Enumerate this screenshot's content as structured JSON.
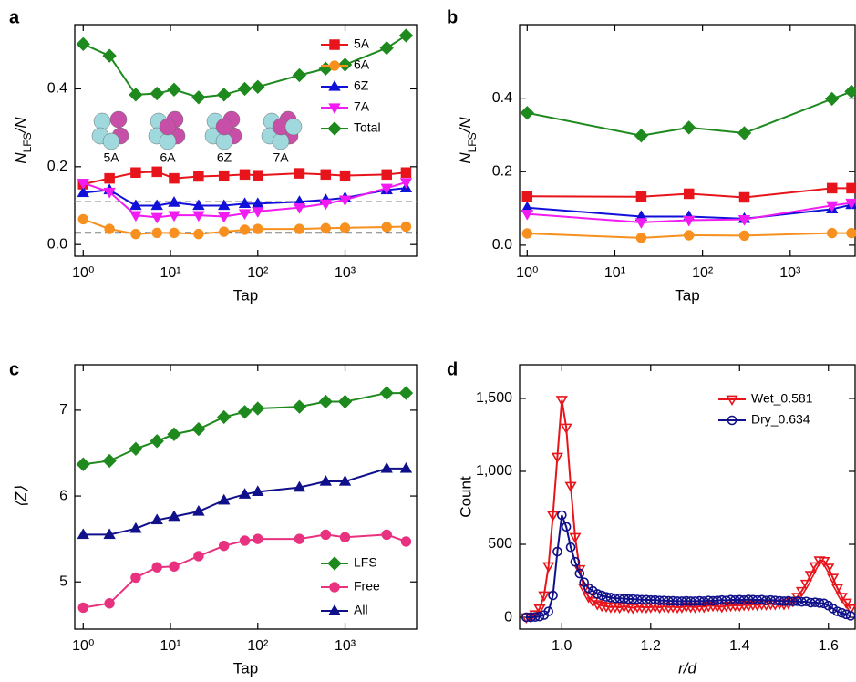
{
  "chart_data": [
    {
      "type": "line",
      "panel_label": "a",
      "x_label": "Tap",
      "y_label": [
        "N",
        "LFS",
        "/N"
      ],
      "xscale": "log",
      "legend": "upper right",
      "grid": false,
      "xlim": [
        0.8,
        6600
      ],
      "ylim": [
        -0.03,
        0.565
      ],
      "xticks": [
        {
          "value": 1,
          "label": "10⁰"
        },
        {
          "value": 10,
          "label": "10¹"
        },
        {
          "value": 100,
          "label": "10²"
        },
        {
          "value": 1000,
          "label": "10³"
        }
      ],
      "yticks": [
        {
          "value": 0,
          "label": "0.0"
        },
        0.2,
        0.4
      ],
      "x": [
        1,
        2,
        4,
        7,
        11,
        21,
        41,
        71,
        100,
        300,
        600,
        1000,
        3000,
        5000
      ],
      "hlines": [
        {
          "value": 0.11,
          "color": "#999999"
        },
        {
          "value": 0.03,
          "color": "#000000"
        }
      ],
      "inset_labels": [
        "5A",
        "6A",
        "6Z",
        "7A"
      ],
      "series": [
        {
          "name": "5A",
          "color": "#e8141b",
          "marker": "square",
          "values": [
            0.155,
            0.17,
            0.185,
            0.187,
            0.17,
            0.175,
            0.177,
            0.18,
            0.178,
            0.183,
            0.18,
            0.177,
            0.18,
            0.185
          ]
        },
        {
          "name": "6A",
          "color": "#f7901e",
          "marker": "circle",
          "values": [
            0.065,
            0.04,
            0.027,
            0.03,
            0.03,
            0.027,
            0.033,
            0.038,
            0.04,
            0.04,
            0.042,
            0.043,
            0.045,
            0.046
          ]
        },
        {
          "name": "6Z",
          "color": "#1010d8",
          "marker": "triangle-up",
          "values": [
            0.133,
            0.14,
            0.1,
            0.1,
            0.108,
            0.1,
            0.1,
            0.105,
            0.105,
            0.11,
            0.115,
            0.12,
            0.14,
            0.145
          ]
        },
        {
          "name": "7A",
          "color": "#f21cf2",
          "marker": "triangle-down",
          "values": [
            0.158,
            0.135,
            0.075,
            0.07,
            0.075,
            0.075,
            0.072,
            0.08,
            0.085,
            0.095,
            0.105,
            0.115,
            0.145,
            0.16
          ]
        },
        {
          "name": "Total",
          "color": "#1e8a1e",
          "marker": "diamond",
          "values": [
            0.515,
            0.485,
            0.385,
            0.388,
            0.398,
            0.378,
            0.385,
            0.4,
            0.405,
            0.435,
            0.452,
            0.462,
            0.505,
            0.537
          ]
        }
      ]
    },
    {
      "type": "line",
      "panel_label": "b",
      "x_label": "Tap",
      "y_label": [
        "N",
        "LFS",
        "/N"
      ],
      "xscale": "log",
      "grid": false,
      "xlim": [
        0.82,
        5500
      ],
      "ylim": [
        -0.03,
        0.6
      ],
      "xticks": [
        {
          "value": 1,
          "label": "10⁰"
        },
        {
          "value": 10,
          "label": "10¹"
        },
        {
          "value": 100,
          "label": "10²"
        },
        {
          "value": 1000,
          "label": "10³"
        }
      ],
      "yticks": [
        {
          "value": 0,
          "label": "0.0"
        },
        0.2,
        0.4
      ],
      "x": [
        1,
        20,
        70,
        300,
        3000,
        5000
      ],
      "series": [
        {
          "color": "#e8141b",
          "marker": "square",
          "values": [
            0.133,
            0.132,
            0.14,
            0.13,
            0.155,
            0.155
          ]
        },
        {
          "color": "#f7901e",
          "marker": "circle",
          "values": [
            0.032,
            0.02,
            0.027,
            0.026,
            0.033,
            0.033
          ]
        },
        {
          "color": "#1010d8",
          "marker": "triangle-up",
          "values": [
            0.102,
            0.078,
            0.078,
            0.072,
            0.098,
            0.11
          ]
        },
        {
          "color": "#f21cf2",
          "marker": "triangle-down",
          "values": [
            0.085,
            0.062,
            0.068,
            0.07,
            0.108,
            0.115
          ]
        },
        {
          "color": "#1e8a1e",
          "marker": "diamond",
          "values": [
            0.36,
            0.298,
            0.32,
            0.305,
            0.398,
            0.418
          ]
        }
      ]
    },
    {
      "type": "line",
      "panel_label": "c",
      "x_label": "Tap",
      "y_label": "⟨Z⟩",
      "xscale": "log",
      "legend": "lower right",
      "grid": false,
      "xlim": [
        0.8,
        6600
      ],
      "ylim": [
        4.45,
        7.53
      ],
      "xticks": [
        {
          "value": 1,
          "label": "10⁰"
        },
        {
          "value": 10,
          "label": "10¹"
        },
        {
          "value": 100,
          "label": "10²"
        },
        {
          "value": 1000,
          "label": "10³"
        }
      ],
      "yticks": [
        5,
        6,
        7
      ],
      "x": [
        1,
        2,
        4,
        7,
        11,
        21,
        41,
        71,
        100,
        300,
        600,
        1000,
        3000,
        5000
      ],
      "series": [
        {
          "name": "LFS",
          "color": "#1e8a1e",
          "marker": "diamond",
          "values": [
            6.37,
            6.41,
            6.55,
            6.64,
            6.72,
            6.78,
            6.92,
            6.98,
            7.02,
            7.04,
            7.1,
            7.1,
            7.2,
            7.2
          ]
        },
        {
          "name": "Free",
          "color": "#e8317f",
          "marker": "circle",
          "values": [
            4.7,
            4.75,
            5.05,
            5.17,
            5.18,
            5.3,
            5.42,
            5.48,
            5.5,
            5.5,
            5.55,
            5.52,
            5.55,
            5.47
          ]
        },
        {
          "name": "All",
          "color": "#10108a",
          "marker": "triangle-up",
          "values": [
            5.55,
            5.55,
            5.62,
            5.72,
            5.76,
            5.82,
            5.95,
            6.02,
            6.05,
            6.1,
            6.17,
            6.17,
            6.32,
            6.32
          ]
        }
      ]
    },
    {
      "type": "line",
      "panel_label": "d",
      "x_label": "r/d",
      "y_label": "Count",
      "legend": "upper right",
      "grid": false,
      "open_markers": true,
      "xlim": [
        0.905,
        1.66
      ],
      "ylim": [
        -81,
        1731
      ],
      "xticks": [
        {
          "value": 1,
          "label": "1.0"
        },
        1.2,
        1.4,
        1.6
      ],
      "yticks": [
        0,
        500,
        {
          "value": 1000,
          "label": "1,000"
        },
        {
          "value": 1500,
          "label": "1,500"
        }
      ],
      "x": [
        0.92,
        0.93,
        0.94,
        0.95,
        0.96,
        0.97,
        0.98,
        0.99,
        1.0,
        1.01,
        1.02,
        1.03,
        1.04,
        1.05,
        1.06,
        1.07,
        1.08,
        1.09,
        1.1,
        1.11,
        1.12,
        1.13,
        1.14,
        1.15,
        1.16,
        1.17,
        1.18,
        1.19,
        1.2,
        1.21,
        1.22,
        1.23,
        1.24,
        1.25,
        1.26,
        1.27,
        1.28,
        1.29,
        1.3,
        1.31,
        1.32,
        1.33,
        1.34,
        1.35,
        1.36,
        1.37,
        1.38,
        1.39,
        1.4,
        1.41,
        1.42,
        1.43,
        1.44,
        1.45,
        1.46,
        1.47,
        1.48,
        1.49,
        1.5,
        1.51,
        1.52,
        1.53,
        1.54,
        1.55,
        1.56,
        1.57,
        1.58,
        1.59,
        1.6,
        1.61,
        1.62,
        1.63,
        1.64,
        1.65
      ],
      "series": [
        {
          "name": "Wet_0.581",
          "color": "#e8141b",
          "marker": "triangle-down",
          "values": [
            0,
            5,
            20,
            60,
            150,
            350,
            700,
            1100,
            1490,
            1300,
            900,
            550,
            330,
            200,
            140,
            110,
            90,
            80,
            75,
            70,
            72,
            68,
            75,
            70,
            65,
            72,
            70,
            68,
            70,
            72,
            68,
            75,
            70,
            72,
            68,
            70,
            75,
            72,
            70,
            75,
            72,
            78,
            80,
            75,
            72,
            78,
            80,
            82,
            80,
            85,
            82,
            88,
            85,
            90,
            88,
            92,
            90,
            95,
            90,
            95,
            110,
            140,
            180,
            230,
            290,
            350,
            390,
            385,
            340,
            270,
            200,
            140,
            100,
            60
          ]
        },
        {
          "name": "Dry_0.634",
          "color": "#10108a",
          "marker": "circle",
          "values": [
            0,
            0,
            2,
            5,
            15,
            40,
            150,
            450,
            700,
            620,
            480,
            380,
            300,
            240,
            200,
            180,
            160,
            150,
            140,
            135,
            130,
            130,
            128,
            125,
            125,
            122,
            120,
            120,
            118,
            118,
            115,
            115,
            112,
            112,
            110,
            110,
            112,
            110,
            110,
            112,
            110,
            115,
            112,
            115,
            118,
            115,
            120,
            118,
            120,
            118,
            122,
            120,
            118,
            120,
            115,
            118,
            115,
            112,
            110,
            112,
            108,
            110,
            105,
            108,
            100,
            102,
            98,
            95,
            80,
            60,
            40,
            30,
            20,
            10
          ]
        }
      ]
    }
  ]
}
